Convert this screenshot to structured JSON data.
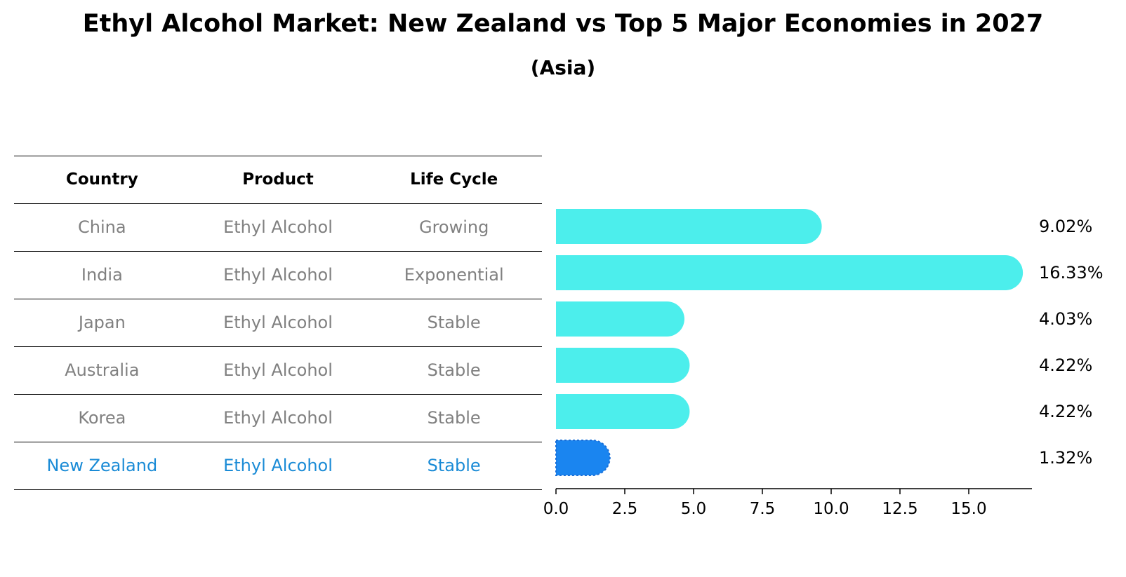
{
  "title": "Ethyl Alcohol Market: New Zealand vs Top 5 Major Economies in 2027",
  "subtitle": "(Asia)",
  "table": {
    "headers": [
      "Country",
      "Product",
      "Life Cycle"
    ],
    "rows": [
      [
        "China",
        "Ethyl Alcohol",
        "Growing"
      ],
      [
        "India",
        "Ethyl Alcohol",
        "Exponential"
      ],
      [
        "Japan",
        "Ethyl Alcohol",
        "Stable"
      ],
      [
        "Australia",
        "Ethyl Alcohol",
        "Stable"
      ],
      [
        "Korea",
        "Ethyl Alcohol",
        "Stable"
      ],
      [
        "New Zealand",
        "Ethyl Alcohol",
        "Stable"
      ]
    ],
    "highlight_row": 5
  },
  "chart_data": {
    "type": "bar",
    "orientation": "horizontal",
    "categories": [
      "China",
      "India",
      "Japan",
      "Australia",
      "Korea",
      "New Zealand"
    ],
    "values": [
      9.02,
      16.33,
      4.03,
      4.22,
      4.22,
      1.32
    ],
    "value_labels": [
      "9.02%",
      "16.33%",
      "4.03%",
      "4.22%",
      "4.22%",
      "1.32%"
    ],
    "xlim": [
      0,
      17.2
    ],
    "xticks": [
      0.0,
      2.5,
      5.0,
      7.5,
      10.0,
      12.5,
      15.0
    ],
    "xtick_labels": [
      "0.0",
      "2.5",
      "5.0",
      "7.5",
      "10.0",
      "12.5",
      "15.0"
    ],
    "grid": false,
    "colors": {
      "default": "#4ceeec",
      "highlight": "#1a85f0"
    }
  }
}
